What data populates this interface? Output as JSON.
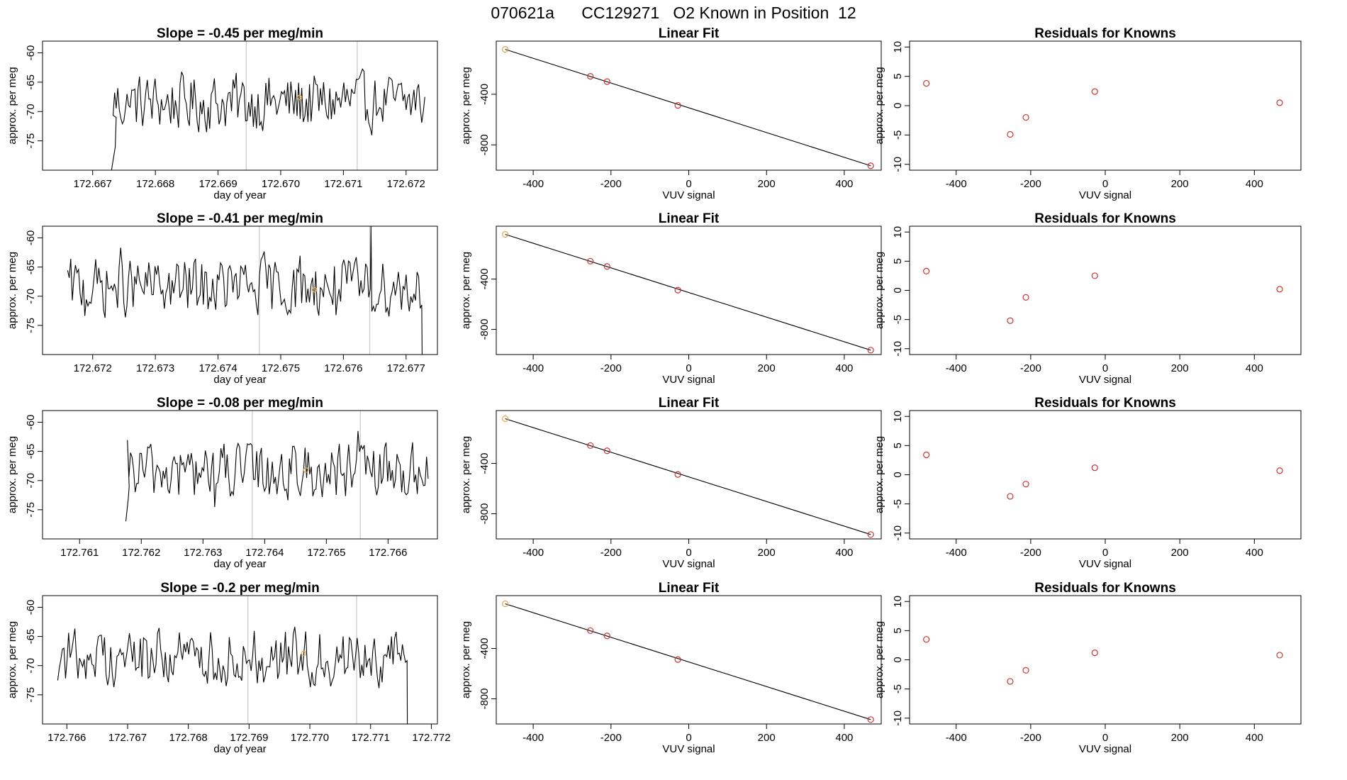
{
  "figure_title": "070621a      CC129271   O2 Known in Position  12",
  "chart_data": [
    {
      "type": "line",
      "panel": "timeseries",
      "title": "Slope =  -0.45  per meg/min",
      "xlabel": "day of year",
      "ylabel": "approx. per meg",
      "xlim": [
        172.6662,
        172.6725
      ],
      "ylim": [
        -80,
        -58
      ],
      "xticks": [
        "172.667",
        "172.668",
        "172.669",
        "172.670",
        "172.671",
        "172.672"
      ],
      "yticks": [
        -75,
        -70,
        -65,
        -60
      ],
      "series_x_range": [
        172.6673,
        172.6723
      ],
      "start_y": -80,
      "start_end_x": 172.66735,
      "vlines": [
        172.66945,
        172.67122
      ],
      "highlight_point": {
        "x": 172.6703,
        "y": -67.6,
        "color": "#e6a64c"
      }
    },
    {
      "type": "scatter",
      "panel": "linear-fit",
      "title": "Linear Fit",
      "xlabel": "VUV signal",
      "ylabel": "approx. per meg",
      "xlim": [
        -495,
        495
      ],
      "ylim": [
        -1000,
        20
      ],
      "xticks": [
        -400,
        -200,
        0,
        200,
        400
      ],
      "yticks": [
        -400,
        -800
      ],
      "x": [
        -472,
        -253,
        -210,
        -28,
        468
      ],
      "y": [
        -45,
        -258,
        -300,
        -488,
        -965
      ],
      "fit_line": [
        [
          -472,
          -45
        ],
        [
          468,
          -965
        ]
      ],
      "point_color": "#cc3333",
      "first_point_color": "#e6a64c"
    },
    {
      "type": "scatter",
      "panel": "residuals",
      "title": "Residuals for Knowns",
      "xlabel": "VUV signal",
      "ylabel": "approx. per meg",
      "xlim": [
        -525,
        525
      ],
      "ylim": [
        -11,
        11
      ],
      "xticks": [
        -400,
        -200,
        0,
        200,
        400
      ],
      "yticks": [
        -10,
        -5,
        0,
        5,
        10
      ],
      "x": [
        -480,
        -255,
        -213,
        -28,
        468
      ],
      "y": [
        3.8,
        -4.9,
        -2,
        2.4,
        0.5
      ],
      "point_color": "#cc3333"
    },
    {
      "type": "line",
      "panel": "timeseries",
      "title": "Slope =  -0.41  per meg/min",
      "xlabel": "day of year",
      "ylabel": "approx. per meg",
      "xlim": [
        172.6712,
        172.6775
      ],
      "ylim": [
        -80,
        -58
      ],
      "xticks": [
        "172.672",
        "172.673",
        "172.674",
        "172.675",
        "172.676",
        "172.677"
      ],
      "yticks": [
        -75,
        -70,
        -65,
        -60
      ],
      "series_x_range": [
        172.6716,
        172.67725
      ],
      "end_y": -80,
      "vlines": [
        172.67466,
        172.67642
      ],
      "spike": {
        "x": 172.67644,
        "y": -58
      },
      "highlight_point": {
        "x": 172.67554,
        "y": -68.9,
        "color": "#e6a64c"
      }
    },
    {
      "type": "scatter",
      "panel": "linear-fit",
      "title": "Linear Fit",
      "xlabel": "VUV signal",
      "ylabel": "approx. per meg",
      "xlim": [
        -495,
        495
      ],
      "ylim": [
        -1000,
        20
      ],
      "xticks": [
        -400,
        -200,
        0,
        200,
        400
      ],
      "yticks": [
        -400,
        -800
      ],
      "x": [
        -472,
        -253,
        -210,
        -28,
        468
      ],
      "y": [
        -45,
        -258,
        -300,
        -488,
        -965
      ],
      "fit_line": [
        [
          -472,
          -45
        ],
        [
          468,
          -965
        ]
      ],
      "point_color": "#cc3333",
      "first_point_color": "#e6a64c"
    },
    {
      "type": "scatter",
      "panel": "residuals",
      "title": "Residuals for Knowns",
      "xlabel": "VUV signal",
      "ylabel": "approx. per meg",
      "xlim": [
        -525,
        525
      ],
      "ylim": [
        -11,
        11
      ],
      "xticks": [
        -400,
        -200,
        0,
        200,
        400
      ],
      "yticks": [
        -10,
        -5,
        0,
        5,
        10
      ],
      "x": [
        -480,
        -255,
        -213,
        -28,
        468
      ],
      "y": [
        3.3,
        -5.2,
        -1.2,
        2.5,
        0.2
      ],
      "point_color": "#cc3333"
    },
    {
      "type": "line",
      "panel": "timeseries",
      "title": "Slope =  -0.08  per meg/min",
      "xlabel": "day of year",
      "ylabel": "approx. per meg",
      "xlim": [
        172.7604,
        172.7668
      ],
      "ylim": [
        -80,
        -58
      ],
      "xticks": [
        "172.761",
        "172.762",
        "172.763",
        "172.764",
        "172.765",
        "172.766"
      ],
      "yticks": [
        -75,
        -70,
        -65,
        -60
      ],
      "series_x_range": [
        172.76175,
        172.76665
      ],
      "start_y": -77,
      "start_end_x": 172.76178,
      "vlines": [
        172.7638,
        172.76555
      ],
      "highlight_point": {
        "x": 172.76467,
        "y": -68.2,
        "color": "#e6a64c"
      }
    },
    {
      "type": "scatter",
      "panel": "linear-fit",
      "title": "Linear Fit",
      "xlabel": "VUV signal",
      "ylabel": "approx. per meg",
      "xlim": [
        -495,
        495
      ],
      "ylim": [
        -1000,
        20
      ],
      "xticks": [
        -400,
        -200,
        0,
        200,
        400
      ],
      "yticks": [
        -400,
        -800
      ],
      "x": [
        -472,
        -253,
        -210,
        -28,
        468
      ],
      "y": [
        -45,
        -258,
        -300,
        -488,
        -965
      ],
      "fit_line": [
        [
          -472,
          -45
        ],
        [
          468,
          -965
        ]
      ],
      "point_color": "#cc3333",
      "first_point_color": "#e6a64c"
    },
    {
      "type": "scatter",
      "panel": "residuals",
      "title": "Residuals for Knowns",
      "xlabel": "VUV signal",
      "ylabel": "approx. per meg",
      "xlim": [
        -525,
        525
      ],
      "ylim": [
        -11,
        11
      ],
      "xticks": [
        -400,
        -200,
        0,
        200,
        400
      ],
      "yticks": [
        -10,
        -5,
        0,
        5,
        10
      ],
      "x": [
        -480,
        -255,
        -213,
        -28,
        468
      ],
      "y": [
        3.4,
        -3.7,
        -1.6,
        1.2,
        0.7
      ],
      "point_color": "#cc3333"
    },
    {
      "type": "line",
      "panel": "timeseries",
      "title": "Slope =  -0.2  per meg/min",
      "xlabel": "day of year",
      "ylabel": "approx. per meg",
      "xlim": [
        172.7656,
        172.7721
      ],
      "ylim": [
        -80,
        -58
      ],
      "xticks": [
        "172.766",
        "172.767",
        "172.768",
        "172.769",
        "172.770",
        "172.771",
        "172.772"
      ],
      "yticks": [
        -75,
        -70,
        -65,
        -60
      ],
      "series_x_range": [
        172.76585,
        172.7716
      ],
      "end_y": -80,
      "vlines": [
        172.76898,
        172.77077
      ],
      "highlight_point": {
        "x": 172.7699,
        "y": -67.9,
        "color": "#e6a64c"
      }
    },
    {
      "type": "scatter",
      "panel": "linear-fit",
      "title": "Linear Fit",
      "xlabel": "VUV signal",
      "ylabel": "approx. per meg",
      "xlim": [
        -495,
        495
      ],
      "ylim": [
        -1000,
        20
      ],
      "xticks": [
        -400,
        -200,
        0,
        200,
        400
      ],
      "yticks": [
        -400,
        -800
      ],
      "x": [
        -472,
        -253,
        -210,
        -28,
        468
      ],
      "y": [
        -45,
        -258,
        -300,
        -488,
        -965
      ],
      "fit_line": [
        [
          -472,
          -45
        ],
        [
          468,
          -965
        ]
      ],
      "point_color": "#cc3333",
      "first_point_color": "#e6a64c"
    },
    {
      "type": "scatter",
      "panel": "residuals",
      "title": "Residuals for Knowns",
      "xlabel": "VUV signal",
      "ylabel": "approx. per meg",
      "xlim": [
        -525,
        525
      ],
      "ylim": [
        -11,
        11
      ],
      "xticks": [
        -400,
        -200,
        0,
        200,
        400
      ],
      "yticks": [
        -10,
        -5,
        0,
        5,
        10
      ],
      "x": [
        -480,
        -255,
        -213,
        -28,
        468
      ],
      "y": [
        3.5,
        -3.7,
        -1.8,
        1.2,
        0.8
      ],
      "point_color": "#cc3333"
    }
  ]
}
